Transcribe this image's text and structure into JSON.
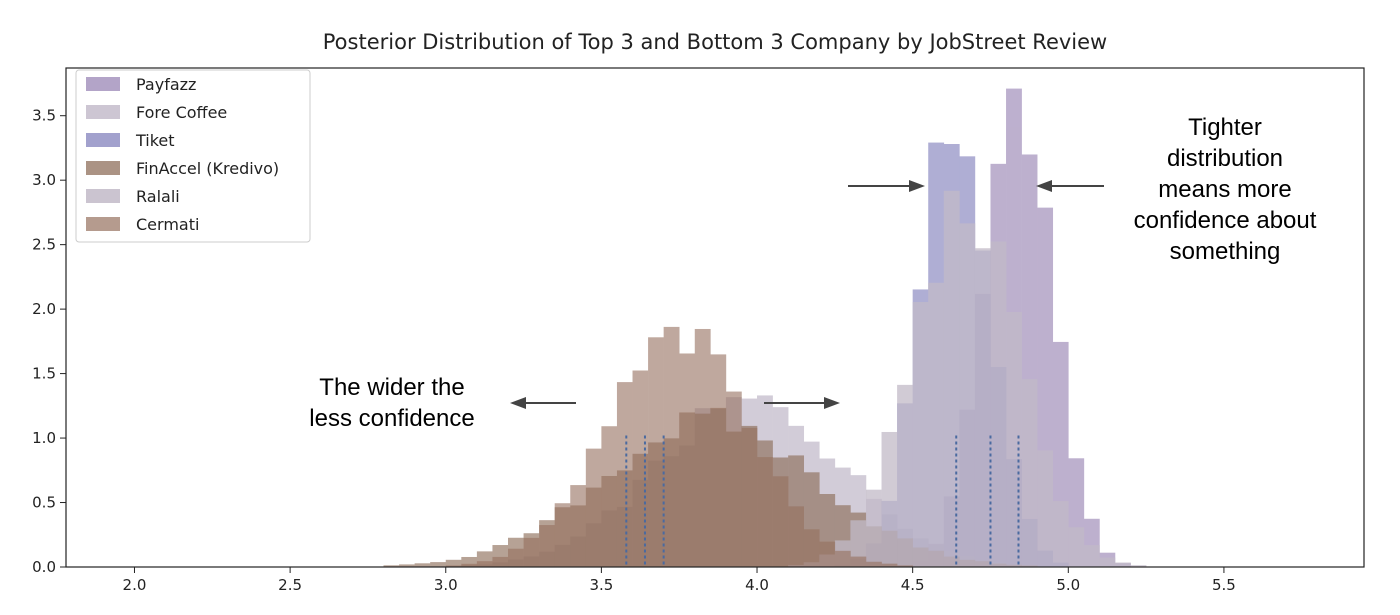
{
  "chart_data": {
    "type": "histogram",
    "title": "Posterior Distribution of Top 3 and Bottom 3 Company by JobStreet Review",
    "xlabel": "",
    "ylabel": "",
    "xlim": [
      1.78,
      5.95
    ],
    "ylim": [
      0,
      3.87
    ],
    "x_ticks": [
      "2.0",
      "2.5",
      "3.0",
      "3.5",
      "4.0",
      "4.5",
      "5.0",
      "5.5"
    ],
    "y_ticks": [
      "0.0",
      "0.5",
      "1.0",
      "1.5",
      "2.0",
      "2.5",
      "3.0",
      "3.5"
    ],
    "grid": false,
    "legend_position": "top-left",
    "series": [
      {
        "name": "Payfazz",
        "color": "#9e8bb8",
        "opacity": 0.68,
        "mean": 4.84,
        "sd": 0.108,
        "peak": 3.73,
        "vline": 4.84
      },
      {
        "name": "Fore Coffee",
        "color": "#c4bccb",
        "opacity": 0.75,
        "mean": 3.98,
        "sd": 0.3,
        "peak": 1.28,
        "vline": 3.58
      },
      {
        "name": "Tiket",
        "color": "#7b79b8",
        "opacity": 0.6,
        "mean": 4.64,
        "sd": 0.11,
        "peak": 3.62,
        "vline": 4.64
      },
      {
        "name": "FinAccel (Kredivo)",
        "color": "#8a6a55",
        "opacity": 0.62,
        "mean": 3.85,
        "sd": 0.34,
        "peak": 1.13,
        "vline": 3.7
      },
      {
        "name": "Ralali",
        "color": "#c2bac8",
        "opacity": 0.75,
        "mean": 4.67,
        "sd": 0.17,
        "peak": 2.8,
        "vline": 4.75
      },
      {
        "name": "Cermati",
        "color": "#96705e",
        "opacity": 0.6,
        "mean": 3.75,
        "sd": 0.23,
        "peak": 1.78,
        "vline": 3.64
      }
    ],
    "annotations": {
      "tighter": [
        "Tighter",
        "distribution",
        "means more",
        "confidence about",
        "something"
      ],
      "wider": [
        "The wider the",
        "less confidence"
      ]
    }
  }
}
